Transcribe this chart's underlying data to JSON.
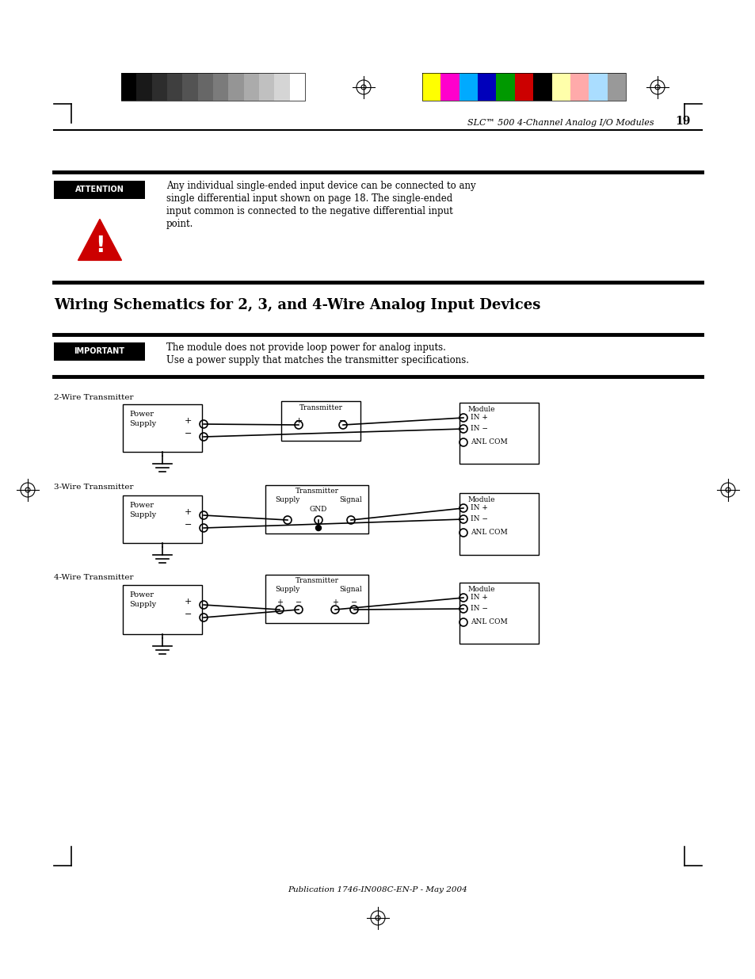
{
  "page_bg": "#ffffff",
  "gray_colors": [
    "#000000",
    "#191919",
    "#2d2d2d",
    "#3f3f3f",
    "#535353",
    "#676767",
    "#7b7b7b",
    "#959595",
    "#ababab",
    "#c0c0c0",
    "#d5d5d5",
    "#ffffff"
  ],
  "color_colors": [
    "#ffff00",
    "#ff00cc",
    "#00aaff",
    "#0000bb",
    "#009900",
    "#cc0000",
    "#000000",
    "#ffffaa",
    "#ffaaaa",
    "#aaddff",
    "#999999"
  ],
  "header_text": "SLC™ 500 4-Channel Analog I/O Modules",
  "page_number": "19",
  "footer_text": "Publication 1746-IN008C-EN-P - May 2004",
  "attention_label": "ATTENTION",
  "attention_text_lines": [
    "Any individual single-ended input device can be connected to any",
    "single differential input shown on page 18. The single-ended",
    "input common is connected to the negative differential input",
    "point."
  ],
  "section_title": "Wiring Schematics for 2, 3, and 4-Wire Analog Input Devices",
  "important_label": "IMPORTANT",
  "important_text_lines": [
    "The module does not provide loop power for analog inputs.",
    "Use a power supply that matches the transmitter specifications."
  ],
  "diagram_2wire_label": "2-Wire Transmitter",
  "diagram_3wire_label": "3-Wire Transmitter",
  "diagram_4wire_label": "4-Wire Transmitter"
}
